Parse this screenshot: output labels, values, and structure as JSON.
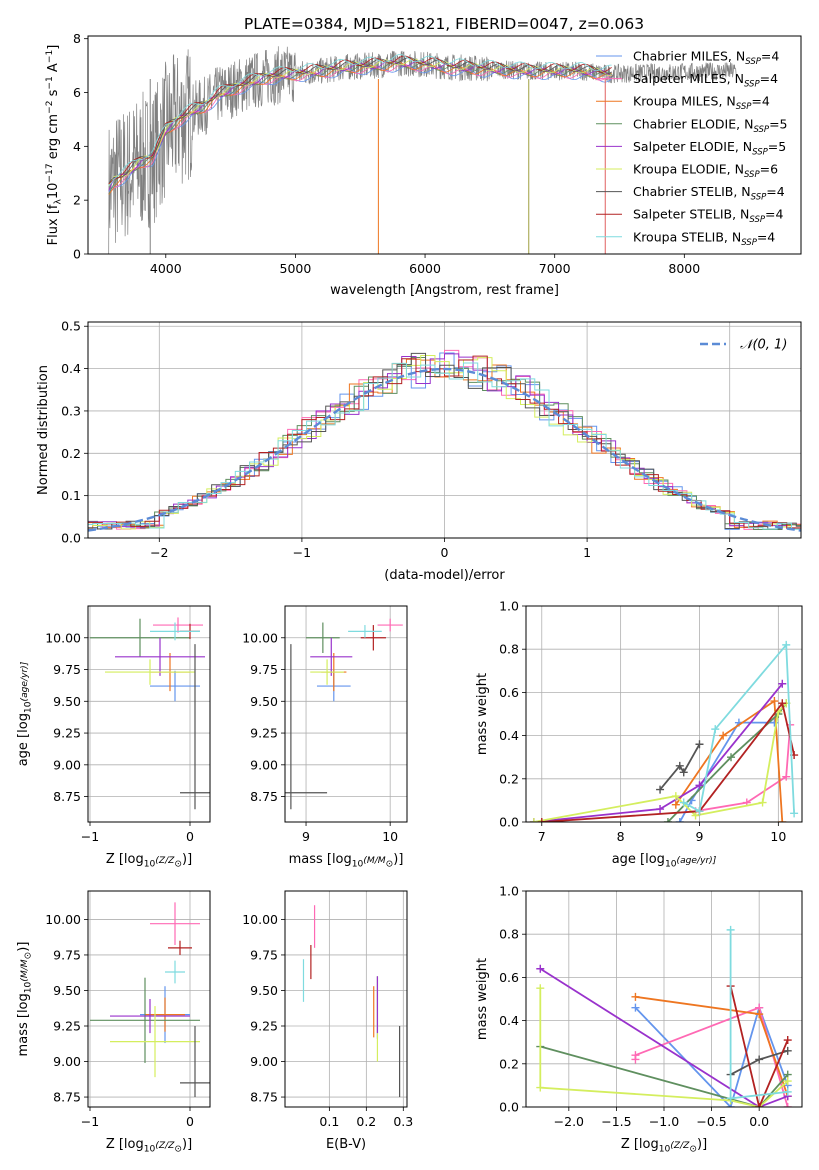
{
  "figure_title": "PLATE=0384, MJD=51821, FIBERID=0047, z=0.063",
  "series_styles": [
    {
      "name": "Chabrier MILES",
      "nssp": "4",
      "color": "#6495ed"
    },
    {
      "name": "Salpeter MILES",
      "nssp": "4",
      "color": "#ff69b4"
    },
    {
      "name": "Kroupa MILES",
      "nssp": "4",
      "color": "#ee7621"
    },
    {
      "name": "Chabrier ELODIE",
      "nssp": "5",
      "color": "#5f8f5f"
    },
    {
      "name": "Salpeter ELODIE",
      "nssp": "5",
      "color": "#9932cc"
    },
    {
      "name": "Kroupa ELODIE",
      "nssp": "6",
      "color": "#d4ee5e"
    },
    {
      "name": "Chabrier STELIB",
      "nssp": "4",
      "color": "#555555"
    },
    {
      "name": "Salpeter STELIB",
      "nssp": "4",
      "color": "#b22222"
    },
    {
      "name": "Kroupa STELIB",
      "nssp": "4",
      "color": "#7fdbdf"
    }
  ],
  "chart_data": [
    {
      "id": "spectrum",
      "type": "line",
      "title": "PLATE=0384, MJD=51821, FIBERID=0047, z=0.063",
      "xlabel": "wavelength [Angstrom, rest frame]",
      "ylabel_parts": [
        "Flux [f",
        "λ",
        "10",
        "−17",
        " erg cm",
        "−2",
        " s",
        "−1",
        " A",
        "−1",
        "]"
      ],
      "xlim": [
        3400,
        8900
      ],
      "ylim": [
        0,
        8.1
      ],
      "xticks": [
        4000,
        5000,
        6000,
        7000,
        8000
      ],
      "yticks": [
        0,
        2,
        4,
        6,
        8
      ],
      "grid": false,
      "legend_loc": "lower-right",
      "legend": [
        "Chabrier MILES, N_SSP=4",
        "Salpeter MILES, N_SSP=4",
        "Kroupa MILES, N_SSP=4",
        "Chabrier ELODIE, N_SSP=5",
        "Salpeter ELODIE, N_SSP=5",
        "Kroupa ELODIE, N_SSP=6",
        "Chabrier STELIB, N_SSP=4",
        "Salpeter STELIB, N_SSP=4",
        "Kroupa STELIB, N_SSP=4"
      ],
      "data_color": "#808080",
      "continuum": {
        "x": [
          3560,
          3600,
          3700,
          3800,
          3900,
          4000,
          4100,
          4200,
          4300,
          4400,
          4600,
          4800,
          5000,
          5200,
          5400,
          5600,
          5800,
          6000,
          6200,
          6400,
          6600,
          6800,
          7000,
          7200,
          7400
        ],
        "y": [
          2.4,
          2.7,
          3.0,
          3.4,
          3.6,
          4.6,
          5.0,
          5.3,
          5.5,
          5.9,
          6.3,
          6.6,
          6.7,
          6.8,
          6.95,
          7.0,
          7.1,
          7.05,
          6.95,
          6.9,
          6.85,
          6.8,
          6.8,
          6.8,
          6.7
        ]
      },
      "data_extent": [
        3560,
        8400
      ]
    },
    {
      "id": "residuals",
      "type": "histogram",
      "xlabel": "(data-model)/error",
      "ylabel": "Normed distribution",
      "xlim": [
        -2.5,
        2.5
      ],
      "ylim": [
        0,
        0.51
      ],
      "xticks": [
        -2,
        -1,
        0,
        1,
        2
      ],
      "yticks": [
        0.0,
        0.1,
        0.2,
        0.3,
        0.4,
        0.5
      ],
      "grid": true,
      "legend_loc": "top-right",
      "legend": [
        "𝒩(0, 1)"
      ],
      "normal_curve_color": "#5b8bd6",
      "bin_width": 0.1
    },
    {
      "id": "age-vs-Z",
      "type": "errorbar",
      "xlabel_parts": [
        "Z [log",
        "10",
        "(Z/Z",
        "⊙",
        ")]"
      ],
      "ylabel_parts": [
        "age  [log",
        "10",
        "(age/yr)]"
      ],
      "xlim": [
        -1.02,
        0.2
      ],
      "ylim": [
        8.55,
        10.25
      ],
      "xticks": [
        -1,
        0
      ],
      "yticks": [
        8.75,
        9.0,
        9.25,
        9.5,
        9.75,
        10.0
      ],
      "grid": true,
      "points": [
        {
          "series": "Chabrier MILES",
          "x": -0.15,
          "xerr": 0.25,
          "y": 9.62,
          "yerr": 0.12
        },
        {
          "series": "Salpeter MILES",
          "x": -0.12,
          "xerr": 0.25,
          "y": 10.1,
          "yerr": 0.06
        },
        {
          "series": "Kroupa MILES",
          "x": -0.2,
          "xerr": 0.2,
          "y": 9.73,
          "yerr": 0.15
        },
        {
          "series": "Chabrier ELODIE",
          "x": -0.5,
          "xerr": 0.5,
          "y": 10.0,
          "yerr": 0.15
        },
        {
          "series": "Salpeter ELODIE",
          "x": -0.3,
          "xerr": 0.45,
          "y": 9.85,
          "yerr": 0.15
        },
        {
          "series": "Kroupa ELODIE",
          "x": -0.4,
          "xerr": 0.45,
          "y": 9.73,
          "yerr": 0.1
        },
        {
          "series": "Chabrier STELIB",
          "x": 0.05,
          "xerr": 0.15,
          "y": 8.78,
          "yerr": 0.0
        },
        {
          "series": "Chabrier STELIB",
          "x": 0.05,
          "xerr": 0.0,
          "y": 9.3,
          "yerr": 0.65
        },
        {
          "series": "Salpeter STELIB",
          "x": 0.0,
          "xerr": 0.1,
          "y": 10.05,
          "yerr": 0.06
        },
        {
          "series": "Kroupa STELIB",
          "x": -0.15,
          "xerr": 0.25,
          "y": 10.05,
          "yerr": 0.07
        }
      ]
    },
    {
      "id": "age-vs-mass",
      "type": "errorbar",
      "xlabel_parts": [
        "mass [log",
        "10",
        "(M/M",
        "⊙",
        ")]"
      ],
      "ylabel_parts": [],
      "xlim": [
        8.75,
        10.2
      ],
      "ylim": [
        8.55,
        10.25
      ],
      "xticks": [
        9,
        10
      ],
      "yticks": [
        8.75,
        9.0,
        9.25,
        9.5,
        9.75,
        10.0
      ],
      "grid": true,
      "points": [
        {
          "series": "Chabrier MILES",
          "x": 9.33,
          "xerr": 0.2,
          "y": 9.62,
          "yerr": 0.12
        },
        {
          "series": "Salpeter MILES",
          "x": 10.0,
          "xerr": 0.15,
          "y": 10.1,
          "yerr": 0.05
        },
        {
          "series": "Kroupa MILES",
          "x": 9.33,
          "xerr": 0.15,
          "y": 9.73,
          "yerr": 0.15
        },
        {
          "series": "Chabrier ELODIE",
          "x": 9.2,
          "xerr": 0.2,
          "y": 10.0,
          "yerr": 0.12
        },
        {
          "series": "Salpeter ELODIE",
          "x": 9.3,
          "xerr": 0.25,
          "y": 9.85,
          "yerr": 0.15
        },
        {
          "series": "Kroupa ELODIE",
          "x": 9.25,
          "xerr": 0.2,
          "y": 9.73,
          "yerr": 0.1
        },
        {
          "series": "Chabrier STELIB",
          "x": 8.82,
          "xerr": 0.0,
          "y": 9.3,
          "yerr": 0.65
        },
        {
          "series": "Chabrier STELIB",
          "x": 9.0,
          "xerr": 0.25,
          "y": 8.78,
          "yerr": 0.0
        },
        {
          "series": "Salpeter STELIB",
          "x": 9.8,
          "xerr": 0.15,
          "y": 10.0,
          "yerr": 0.1
        },
        {
          "series": "Kroupa STELIB",
          "x": 9.7,
          "xerr": 0.2,
          "y": 10.05,
          "yerr": 0.05
        }
      ]
    },
    {
      "id": "weight-vs-age",
      "type": "line",
      "xlabel_parts": [
        "age  [log",
        "10",
        "(age/yr)]"
      ],
      "ylabel": "mass weight",
      "xlim": [
        6.8,
        10.3
      ],
      "ylim": [
        0.0,
        1.0
      ],
      "xticks": [
        7,
        8,
        9,
        10
      ],
      "yticks": [
        0.0,
        0.2,
        0.4,
        0.6,
        0.8,
        1.0
      ],
      "grid": true,
      "series": [
        {
          "name": "Chabrier MILES",
          "x": [
            8.75,
            8.9,
            9.5,
            9.95
          ],
          "y": [
            0.0,
            0.1,
            0.46,
            0.46
          ]
        },
        {
          "name": "Salpeter MILES",
          "x": [
            8.95,
            9.6,
            10.1,
            10.15
          ],
          "y": [
            0.05,
            0.09,
            0.21,
            0.45
          ]
        },
        {
          "name": "Kroupa MILES",
          "x": [
            8.7,
            9.3,
            9.95,
            10.05
          ],
          "y": [
            0.08,
            0.4,
            0.56,
            0.0
          ]
        },
        {
          "name": "Chabrier ELODIE",
          "x": [
            8.6,
            9.4,
            10.0,
            10.1
          ],
          "y": [
            0.0,
            0.3,
            0.5,
            0.55
          ]
        },
        {
          "name": "Salpeter ELODIE",
          "x": [
            6.9,
            8.5,
            9.0,
            10.05
          ],
          "y": [
            0.0,
            0.06,
            0.17,
            0.64
          ]
        },
        {
          "name": "Kroupa ELODIE",
          "x": [
            6.9,
            8.7,
            8.95,
            9.8,
            10.0,
            10.1
          ],
          "y": [
            0.0,
            0.12,
            0.03,
            0.09,
            0.51,
            0.55
          ]
        },
        {
          "name": "Chabrier STELIB",
          "x": [
            8.5,
            8.75,
            8.8,
            9.0
          ],
          "y": [
            0.15,
            0.26,
            0.23,
            0.36
          ]
        },
        {
          "name": "Salpeter STELIB",
          "x": [
            7.0,
            9.0,
            10.05,
            10.2
          ],
          "y": [
            0.0,
            0.05,
            0.55,
            0.31
          ]
        },
        {
          "name": "Kroupa STELIB",
          "x": [
            8.8,
            9.0,
            9.2,
            10.1,
            10.2
          ],
          "y": [
            0.09,
            0.05,
            0.43,
            0.82,
            0.04
          ]
        }
      ]
    },
    {
      "id": "mass-vs-Z",
      "type": "errorbar",
      "xlabel_parts": [
        "Z [log",
        "10",
        "(Z/Z",
        "⊙",
        ")]"
      ],
      "ylabel_parts": [
        "mass [log",
        "10",
        "(M/M",
        "⊙",
        ")]"
      ],
      "xlim": [
        -1.02,
        0.2
      ],
      "ylim": [
        8.68,
        10.2
      ],
      "xticks": [
        -1,
        0
      ],
      "yticks": [
        8.75,
        9.0,
        9.25,
        9.5,
        9.75,
        10.0
      ],
      "grid": true,
      "points": [
        {
          "series": "Chabrier MILES",
          "x": -0.25,
          "xerr": 0.25,
          "y": 9.33,
          "yerr": 0.2
        },
        {
          "series": "Salpeter MILES",
          "x": -0.15,
          "xerr": 0.25,
          "y": 9.97,
          "yerr": 0.15
        },
        {
          "series": "Kroupa MILES",
          "x": -0.25,
          "xerr": 0.2,
          "y": 9.33,
          "yerr": 0.12
        },
        {
          "series": "Chabrier ELODIE",
          "x": -0.45,
          "xerr": 0.55,
          "y": 9.29,
          "yerr": 0.3
        },
        {
          "series": "Salpeter ELODIE",
          "x": -0.4,
          "xerr": 0.4,
          "y": 9.32,
          "yerr": 0.12
        },
        {
          "series": "Kroupa ELODIE",
          "x": -0.35,
          "xerr": 0.45,
          "y": 9.14,
          "yerr": 0.25
        },
        {
          "series": "Chabrier STELIB",
          "x": 0.05,
          "xerr": 0.15,
          "y": 8.85,
          "yerr": 0.0
        },
        {
          "series": "Chabrier STELIB",
          "x": 0.05,
          "xerr": 0.0,
          "y": 9.0,
          "yerr": 0.25
        },
        {
          "series": "Salpeter STELIB",
          "x": -0.1,
          "xerr": 0.12,
          "y": 9.8,
          "yerr": 0.05
        },
        {
          "series": "Kroupa STELIB",
          "x": -0.15,
          "xerr": 0.1,
          "y": 9.63,
          "yerr": 0.08
        }
      ]
    },
    {
      "id": "mass-vs-EBV",
      "type": "errorbar",
      "xlabel": "E(B-V)",
      "ylabel_parts": [],
      "xlim": [
        -0.02,
        0.31
      ],
      "ylim": [
        8.68,
        10.2
      ],
      "xticks": [
        0.1,
        0.2,
        0.3
      ],
      "yticks": [
        8.75,
        9.0,
        9.25,
        9.5,
        9.75,
        10.0
      ],
      "grid": true,
      "points": [
        {
          "series": "Salpeter MILES",
          "x": 0.06,
          "xerr": 0.0,
          "y": 9.95,
          "yerr": 0.15
        },
        {
          "series": "Kroupa STELIB",
          "x": 0.03,
          "xerr": 0.0,
          "y": 9.57,
          "yerr": 0.15
        },
        {
          "series": "Salpeter STELIB",
          "x": 0.05,
          "xerr": 0.0,
          "y": 9.7,
          "yerr": 0.12
        },
        {
          "series": "Kroupa MILES",
          "x": 0.22,
          "xerr": 0.0,
          "y": 9.35,
          "yerr": 0.18
        },
        {
          "series": "Chabrier MILES",
          "x": 0.23,
          "xerr": 0.0,
          "y": 9.38,
          "yerr": 0.22
        },
        {
          "series": "Kroupa ELODIE",
          "x": 0.23,
          "xerr": 0.0,
          "y": 9.3,
          "yerr": 0.3
        },
        {
          "series": "Salpeter ELODIE",
          "x": 0.23,
          "xerr": 0.0,
          "y": 9.4,
          "yerr": 0.2
        },
        {
          "series": "Chabrier STELIB",
          "x": 0.29,
          "xerr": 0.0,
          "y": 9.0,
          "yerr": 0.25
        }
      ]
    },
    {
      "id": "weight-vs-Z",
      "type": "line",
      "xlabel_parts": [
        "Z [log",
        "10",
        "(Z/Z",
        "⊙",
        ")]"
      ],
      "ylabel": "mass weight",
      "xlim": [
        -2.45,
        0.45
      ],
      "ylim": [
        0.0,
        1.0
      ],
      "xticks": [
        -2.0,
        -1.5,
        -1.0,
        -0.5,
        0.0
      ],
      "yticks": [
        0.0,
        0.2,
        0.4,
        0.6,
        0.8,
        1.0
      ],
      "grid": true,
      "series": [
        {
          "name": "Chabrier MILES",
          "x": [
            -1.3,
            -0.3,
            0.0,
            0.3
          ],
          "y": [
            0.46,
            0.0,
            0.46,
            0.1
          ]
        },
        {
          "name": "Salpeter MILES",
          "x": [
            -1.3,
            -1.3,
            0.0,
            0.3
          ],
          "y": [
            0.22,
            0.24,
            0.46,
            0.0
          ]
        },
        {
          "name": "Kroupa MILES",
          "x": [
            -1.3,
            0.0,
            0.3
          ],
          "y": [
            0.51,
            0.43,
            0.05
          ]
        },
        {
          "name": "Chabrier ELODIE",
          "x": [
            -2.3,
            0.0,
            0.3
          ],
          "y": [
            0.28,
            0.0,
            0.15
          ]
        },
        {
          "name": "Salpeter ELODIE",
          "x": [
            -2.3,
            0.0,
            0.3
          ],
          "y": [
            0.64,
            0.0,
            0.05
          ]
        },
        {
          "name": "Kroupa ELODIE",
          "x": [
            -2.3,
            -2.3,
            -0.3,
            0.0,
            0.3
          ],
          "y": [
            0.55,
            0.09,
            0.03,
            0.0,
            0.12
          ]
        },
        {
          "name": "Chabrier STELIB",
          "x": [
            -0.3,
            0.0,
            0.3
          ],
          "y": [
            0.15,
            0.22,
            0.26
          ]
        },
        {
          "name": "Salpeter STELIB",
          "x": [
            -0.3,
            0.0,
            0.3
          ],
          "y": [
            0.56,
            0.0,
            0.31
          ]
        },
        {
          "name": "Kroupa STELIB",
          "x": [
            -0.3,
            -0.3,
            0.3
          ],
          "y": [
            0.82,
            0.04,
            0.07
          ]
        }
      ]
    }
  ]
}
